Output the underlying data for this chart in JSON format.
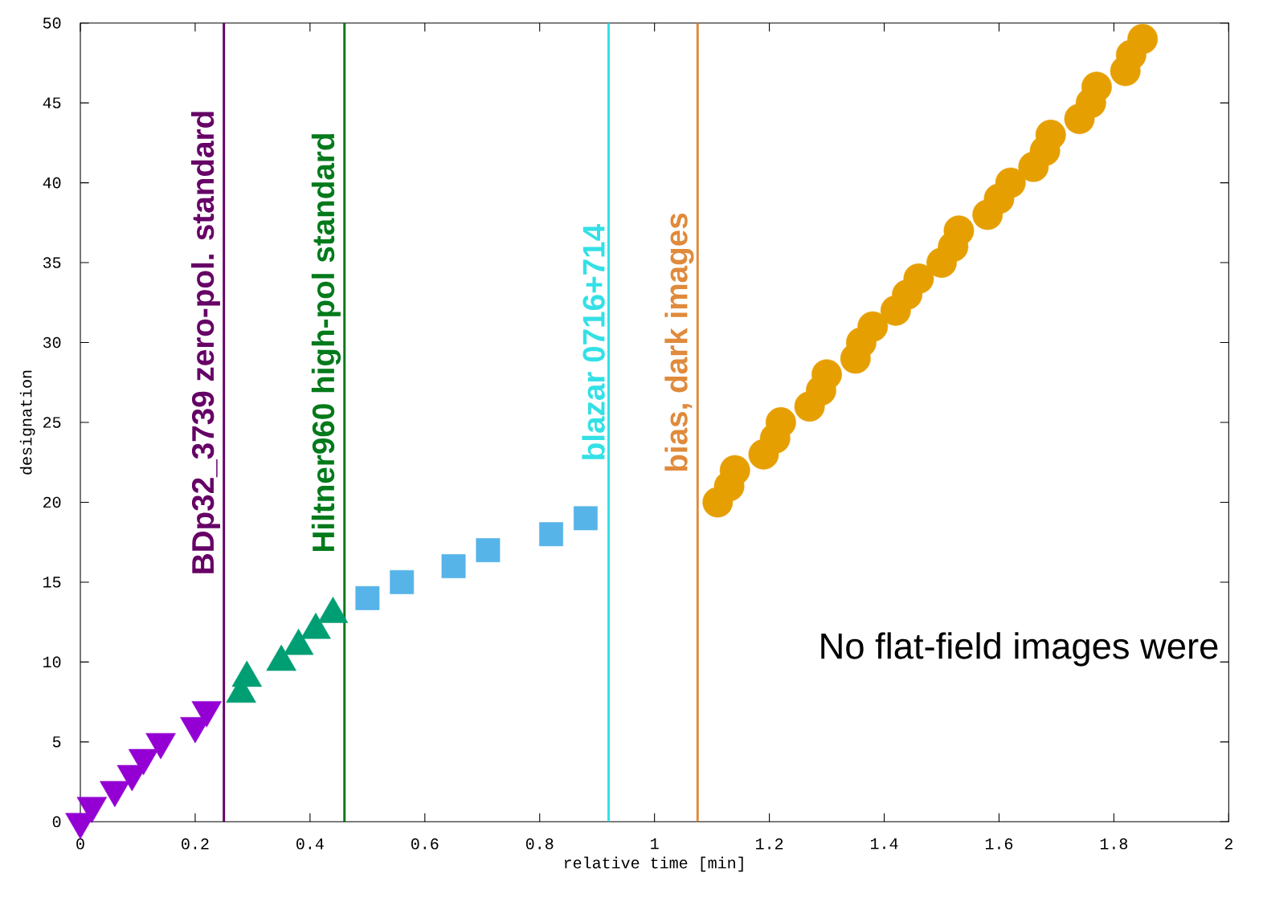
{
  "chart_data": {
    "type": "scatter",
    "xlabel": "relative time [min]",
    "ylabel": "designation",
    "xlim": [
      0,
      2
    ],
    "ylim": [
      0,
      50
    ],
    "xticks": [
      0,
      0.2,
      0.4,
      0.6,
      0.8,
      1,
      1.2,
      1.4,
      1.6,
      1.8,
      2
    ],
    "yticks": [
      0,
      5,
      10,
      15,
      20,
      25,
      30,
      35,
      40,
      45,
      50
    ],
    "series": [
      {
        "color": "#9400d3",
        "marker": "triangle-down",
        "x": [
          0,
          0.02,
          0.06,
          0.09,
          0.11,
          0.14,
          0.2,
          0.22
        ],
        "values": [
          0,
          1,
          2,
          3,
          4,
          5,
          6,
          7
        ]
      },
      {
        "color": "#009e73",
        "marker": "triangle",
        "x": [
          0.28,
          0.29,
          0.35,
          0.38,
          0.41,
          0.44
        ],
        "values": [
          8,
          9,
          10,
          11,
          12,
          13
        ]
      },
      {
        "color": "#56b4e9",
        "marker": "square",
        "x": [
          0.5,
          0.56,
          0.65,
          0.71,
          0.82,
          0.88
        ],
        "values": [
          14,
          15,
          16,
          17,
          18,
          19
        ]
      },
      {
        "color": "#e69f00",
        "marker": "circle",
        "x": [
          1.11,
          1.13,
          1.14,
          1.19,
          1.21,
          1.22,
          1.27,
          1.29,
          1.3,
          1.35,
          1.36,
          1.38,
          1.42,
          1.44,
          1.46,
          1.5,
          1.52,
          1.53,
          1.58,
          1.6,
          1.62,
          1.66,
          1.68,
          1.69,
          1.74,
          1.76,
          1.77,
          1.82,
          1.83,
          1.85
        ],
        "values": [
          20,
          21,
          22,
          23,
          24,
          25,
          26,
          27,
          28,
          29,
          30,
          31,
          32,
          33,
          34,
          35,
          36,
          37,
          38,
          39,
          40,
          41,
          42,
          43,
          44,
          45,
          46,
          47,
          48,
          49
        ]
      }
    ],
    "ref_lines": [
      {
        "axis": "x",
        "value": 0.25,
        "label": "BDp32_3739 zero-pol. standard",
        "color": "#660066"
      },
      {
        "axis": "x",
        "value": 0.46,
        "label": "Hiltner960 high-pol standard",
        "color": "#007a1a"
      },
      {
        "axis": "x",
        "value": 0.92,
        "label": "blazar 0716+714",
        "color": "#33e0e6"
      },
      {
        "axis": "x",
        "value": 1.075,
        "label": "bias, dark images",
        "color": "#e08a3c"
      }
    ],
    "annotations": [
      "No flat-field images were"
    ]
  }
}
